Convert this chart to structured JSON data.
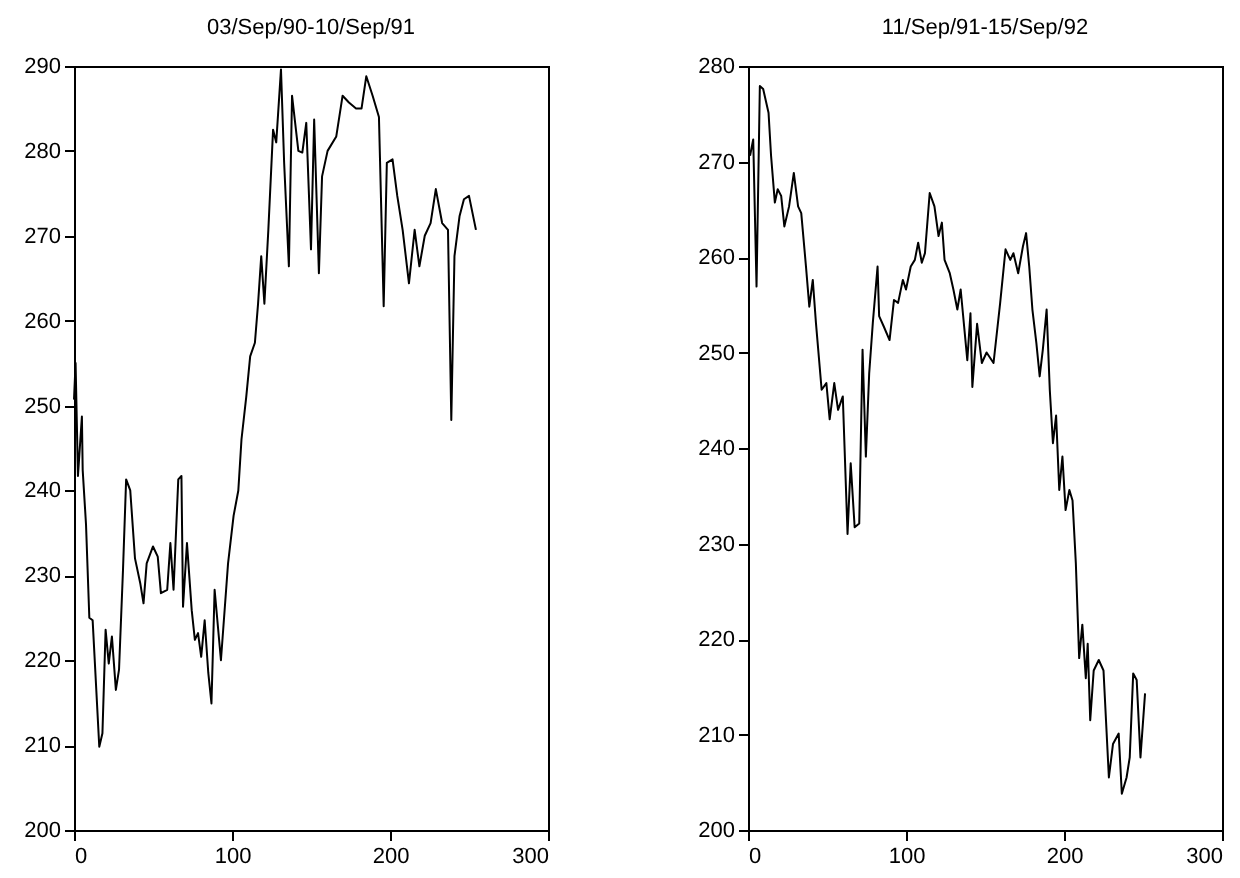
{
  "chart_data": [
    {
      "type": "line",
      "title": "03/Sep/90-10/Sep/91",
      "xlim": [
        0,
        300
      ],
      "xticks": [
        0,
        100,
        200,
        300
      ],
      "ylim": [
        200,
        290
      ],
      "yticks": [
        200,
        210,
        220,
        230,
        240,
        250,
        260,
        270,
        280,
        290
      ],
      "grid": false,
      "marker": "none",
      "line_style": "solid",
      "series": [
        {
          "color": "#000000",
          "x": [
            0,
            1,
            2.5,
            5,
            5.5,
            7.6,
            9.7,
            11.8,
            16,
            18,
            20,
            22,
            24,
            26.5,
            28.5,
            31,
            33,
            35.6,
            38.6,
            42,
            44,
            46,
            50,
            53,
            55,
            59,
            61,
            63,
            66,
            68,
            69,
            71.5,
            74.5,
            76.5,
            78.5,
            80.5,
            82.7,
            85,
            87,
            89,
            93,
            97.5,
            101,
            104,
            106,
            109,
            111.5,
            114.5,
            116.5,
            118.5,
            120.5,
            123,
            126,
            128,
            131,
            133,
            136,
            138,
            142,
            144.5,
            147,
            150,
            152,
            155,
            157,
            160.5,
            166,
            170,
            174,
            178.5,
            182,
            185,
            189,
            193,
            196,
            198,
            201.6,
            204.6,
            208,
            212,
            215.6,
            218.6,
            222,
            225.7,
            229,
            233,
            236.7,
            238.8,
            240.8,
            244,
            246.8,
            250,
            254.4
          ],
          "values": [
            250.7,
            255,
            241.7,
            248.7,
            242.4,
            236,
            225,
            224.7,
            209.8,
            211.4,
            223.6,
            219.6,
            222.8,
            216.5,
            218.9,
            230.6,
            241.3,
            240,
            232,
            229,
            226.7,
            231.4,
            233.4,
            232.2,
            227.9,
            228.3,
            233.8,
            228.3,
            241.3,
            241.7,
            226.3,
            233.8,
            225.9,
            222.4,
            223.2,
            220.4,
            224.7,
            218.5,
            214.9,
            228.3,
            220,
            231.4,
            237,
            240,
            246,
            251,
            255.8,
            257.4,
            262,
            267.6,
            262,
            270.7,
            282.5,
            281,
            289.6,
            278.6,
            266.4,
            286.5,
            280,
            279.8,
            283.3,
            268.4,
            283.7,
            265.6,
            277,
            280,
            281.7,
            286.5,
            285.7,
            285,
            285,
            288.8,
            286.5,
            284,
            261.7,
            278.6,
            279,
            274.7,
            270.7,
            264.4,
            270.7,
            266.4,
            270,
            271.5,
            275.5,
            271.5,
            270.7,
            248.3,
            267.6,
            272.3,
            274.3,
            274.7,
            270.7
          ]
        }
      ]
    },
    {
      "type": "line",
      "title": "11/Sep/91-15/Sep/92",
      "xlim": [
        0,
        300
      ],
      "xticks": [
        0,
        100,
        200,
        300
      ],
      "ylim": [
        200,
        280
      ],
      "yticks": [
        200,
        210,
        220,
        230,
        240,
        250,
        260,
        270,
        280
      ],
      "grid": false,
      "marker": "none",
      "line_style": "solid",
      "series": [
        {
          "color": "#000000",
          "x": [
            1.3,
            3.3,
            5.4,
            7.5,
            9.6,
            13,
            14.6,
            17,
            18.8,
            21,
            23,
            26,
            29,
            31.7,
            33.7,
            36.7,
            38.8,
            41,
            43,
            46.6,
            49.6,
            51.7,
            54.6,
            57,
            60,
            63,
            65,
            67.5,
            70.4,
            72.5,
            74.6,
            76.7,
            79,
            82,
            83,
            86,
            89.6,
            92.4,
            95,
            98,
            100,
            103,
            105.6,
            107.7,
            110,
            112,
            115,
            118,
            120.6,
            122.7,
            124.4,
            127.7,
            130,
            132.5,
            134.6,
            138.8,
            140.8,
            142,
            145,
            148,
            151,
            155.4,
            159.6,
            163,
            166,
            168,
            171,
            174,
            176,
            178,
            180,
            182.5,
            184.6,
            186.6,
            189,
            191,
            193,
            195,
            197,
            199,
            201,
            203.4,
            205.4,
            207.5,
            209.6,
            211.6,
            213.8,
            215,
            216.6,
            218.8,
            222,
            225,
            228.4,
            231,
            234.6,
            236.6,
            239.6,
            241.6,
            243.8,
            246,
            248.4,
            251.3
          ],
          "values": [
            270.6,
            272.3,
            256.9,
            277.9,
            277.6,
            275.1,
            270.6,
            265.7,
            267.1,
            266.4,
            263.2,
            265.3,
            268.8,
            265.3,
            264.6,
            259,
            254.8,
            257.6,
            253.1,
            246.1,
            246.8,
            243,
            246.8,
            244,
            245.4,
            231,
            238.4,
            231.7,
            232.1,
            250.3,
            239.1,
            247.8,
            253.1,
            259,
            253.8,
            252.7,
            251.3,
            255.5,
            255.2,
            257.6,
            256.6,
            259,
            259.7,
            261.5,
            259.4,
            260.4,
            266.7,
            265.3,
            262.2,
            263.6,
            259.7,
            258.3,
            256.6,
            254.5,
            256.6,
            249.2,
            254.1,
            246.4,
            253,
            248.9,
            250,
            248.9,
            255.2,
            260.8,
            259.7,
            260.4,
            258.3,
            261.1,
            262.5,
            259,
            254.5,
            251,
            247.5,
            250.3,
            254.5,
            246.1,
            240.5,
            243.4,
            235.6,
            239.1,
            233.5,
            235.6,
            234.5,
            227.9,
            218,
            221.5,
            215.9,
            219.5,
            211.5,
            216.7,
            217.8,
            216.7,
            205.5,
            209,
            210.1,
            203.8,
            205.5,
            207.6,
            216.4,
            215.7,
            207.6,
            214.3
          ]
        }
      ]
    }
  ]
}
